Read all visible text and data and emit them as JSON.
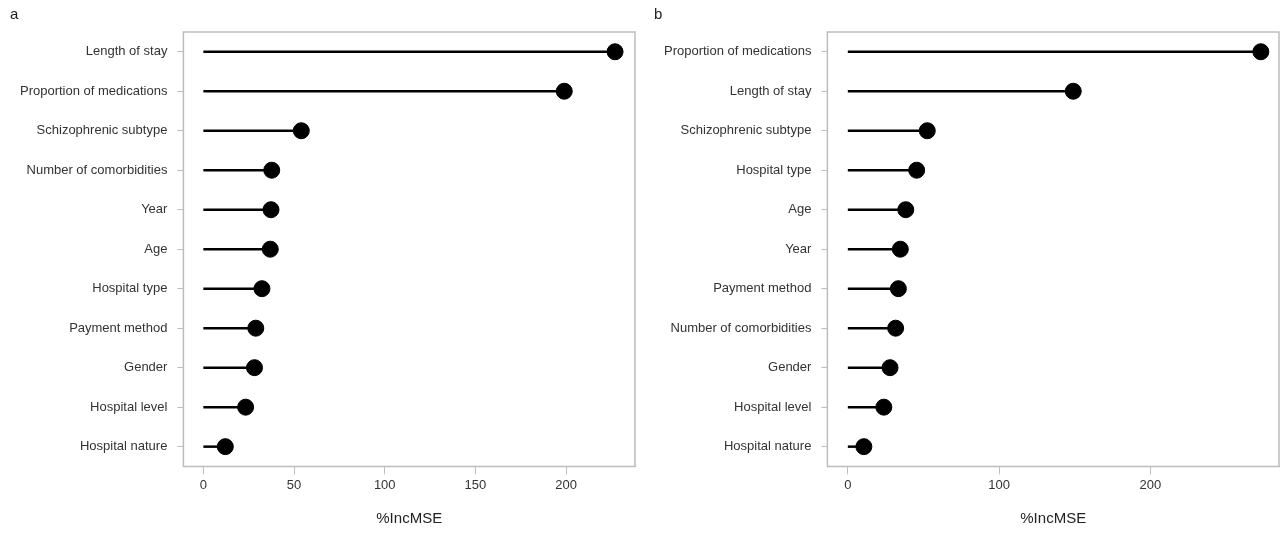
{
  "chart_data": [
    {
      "type": "lollipop",
      "title": "a",
      "xlabel": "%IncMSE",
      "orientation": "horizontal",
      "marker": "circle",
      "color": "#000000",
      "categories": [
        "Length of stay",
        "Proportion of medications",
        "Schizophrenic subtype",
        "Number of comorbidities",
        "Year",
        "Age",
        "Hospital type",
        "Payment method",
        "Gender",
        "Hospital level",
        "Hospital nature"
      ],
      "values": [
        227,
        199,
        54,
        37.7,
        37.3,
        36.9,
        32.3,
        28.9,
        28.2,
        23.3,
        12.1
      ],
      "xlim": [
        -11,
        238
      ],
      "xticks": [
        0,
        50,
        100,
        150,
        200
      ]
    },
    {
      "type": "lollipop",
      "title": "b",
      "xlabel": "%IncMSE",
      "orientation": "horizontal",
      "marker": "circle",
      "color": "#000000",
      "categories": [
        "Proportion of medications",
        "Length of stay",
        "Schizophrenic subtype",
        "Hospital type",
        "Age",
        "Year",
        "Payment method",
        "Number of comorbidities",
        "Gender",
        "Hospital level",
        "Hospital nature"
      ],
      "values": [
        273,
        149,
        52.5,
        45.5,
        38.3,
        34.7,
        33.4,
        31.6,
        27.9,
        23.8,
        10.6
      ],
      "xlim": [
        -13.5,
        285
      ],
      "xticks": [
        0,
        100,
        200
      ]
    }
  ]
}
